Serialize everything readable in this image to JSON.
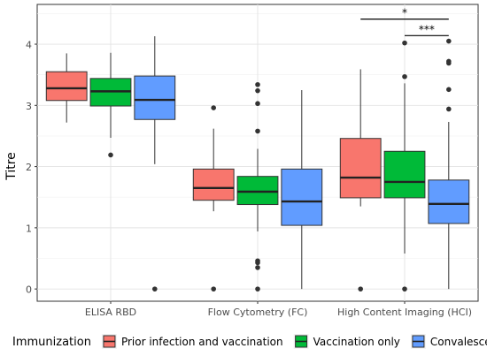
{
  "chart_data": {
    "type": "box",
    "ylabel": "Titre",
    "xlabel": "",
    "ylim": [
      -0.2,
      4.65
    ],
    "yticks": [
      0,
      1,
      2,
      3,
      4
    ],
    "categories": [
      "ELISA RBD",
      "Flow Cytometry (FC)",
      "High Content Imaging (HCI)"
    ],
    "legend": {
      "title": "Immunization",
      "position": "bottom"
    },
    "series": [
      {
        "name": "Prior infection and vaccination",
        "color": "#F8766D",
        "boxes": [
          {
            "q1": 3.08,
            "median": 3.28,
            "q3": 3.55,
            "whisker_low": 2.72,
            "whisker_high": 3.85,
            "outliers": []
          },
          {
            "q1": 1.45,
            "median": 1.65,
            "q3": 1.96,
            "whisker_low": 1.27,
            "whisker_high": 2.62,
            "outliers": [
              2.96,
              0
            ]
          },
          {
            "q1": 1.49,
            "median": 1.82,
            "q3": 2.46,
            "whisker_low": 1.35,
            "whisker_high": 3.59,
            "outliers": [
              0
            ]
          }
        ]
      },
      {
        "name": "Vaccination only",
        "color": "#00BA38",
        "boxes": [
          {
            "q1": 2.99,
            "median": 3.23,
            "q3": 3.44,
            "whisker_low": 2.47,
            "whisker_high": 3.86,
            "outliers": [
              2.19
            ]
          },
          {
            "q1": 1.38,
            "median": 1.59,
            "q3": 1.84,
            "whisker_low": 0.94,
            "whisker_high": 2.29,
            "outliers": [
              3.34,
              3.24,
              3.03,
              2.58,
              0.46,
              0.43,
              0.35,
              0
            ]
          },
          {
            "q1": 1.49,
            "median": 1.75,
            "q3": 2.25,
            "whisker_low": 0.58,
            "whisker_high": 3.36,
            "outliers": [
              4.02,
              3.47,
              0
            ]
          }
        ]
      },
      {
        "name": "Convalescent",
        "color": "#619CFF",
        "boxes": [
          {
            "q1": 2.77,
            "median": 3.09,
            "q3": 3.48,
            "whisker_low": 2.04,
            "whisker_high": 4.13,
            "outliers": [
              0
            ]
          },
          {
            "q1": 1.04,
            "median": 1.43,
            "q3": 1.96,
            "whisker_low": 0,
            "whisker_high": 3.25,
            "outliers": []
          },
          {
            "q1": 1.07,
            "median": 1.39,
            "q3": 1.78,
            "whisker_low": 0,
            "whisker_high": 2.73,
            "outliers": [
              4.05,
              3.72,
              3.69,
              3.26,
              2.94
            ]
          }
        ]
      }
    ],
    "significance": [
      {
        "label": "*",
        "y": 4.41,
        "from_series": 0,
        "to_series": 2,
        "category": 2
      },
      {
        "label": "***",
        "y": 4.14,
        "from_series": 1,
        "to_series": 2,
        "category": 2
      }
    ]
  }
}
